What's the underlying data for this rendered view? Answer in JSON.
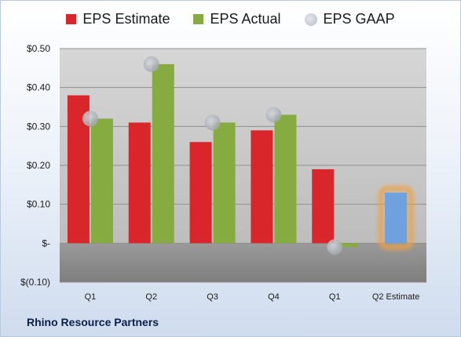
{
  "chart_data": {
    "type": "bar",
    "categories": [
      "Q1",
      "Q2",
      "Q3",
      "Q4",
      "Q1",
      "Q2 Estimate"
    ],
    "series": [
      {
        "name": "EPS Estimate",
        "values": [
          0.38,
          0.31,
          0.26,
          0.29,
          0.19,
          null
        ],
        "color": "#d9262b"
      },
      {
        "name": "EPS Actual",
        "values": [
          0.32,
          0.46,
          0.31,
          0.33,
          -0.01,
          null
        ],
        "color": "#86ac41"
      },
      {
        "name": "EPS GAAP",
        "values": [
          0.32,
          0.46,
          0.31,
          0.33,
          -0.01,
          null
        ],
        "color": "#b8bcc4"
      }
    ],
    "next_estimate": {
      "category": "Q2 Estimate",
      "value": 0.13,
      "color": "#6fa0e0",
      "highlight": "#f0a040"
    },
    "ylim": [
      -0.1,
      0.5
    ],
    "yticks": [
      -0.1,
      0.0,
      0.1,
      0.2,
      0.3,
      0.4,
      0.5
    ],
    "ytick_labels": [
      "$(0.10)",
      "$-",
      "$0.10",
      "$0.20",
      "$0.30",
      "$0.40",
      "$0.50"
    ],
    "grid": true,
    "legend": "top"
  },
  "company_name": "Rhino Resource Partners"
}
